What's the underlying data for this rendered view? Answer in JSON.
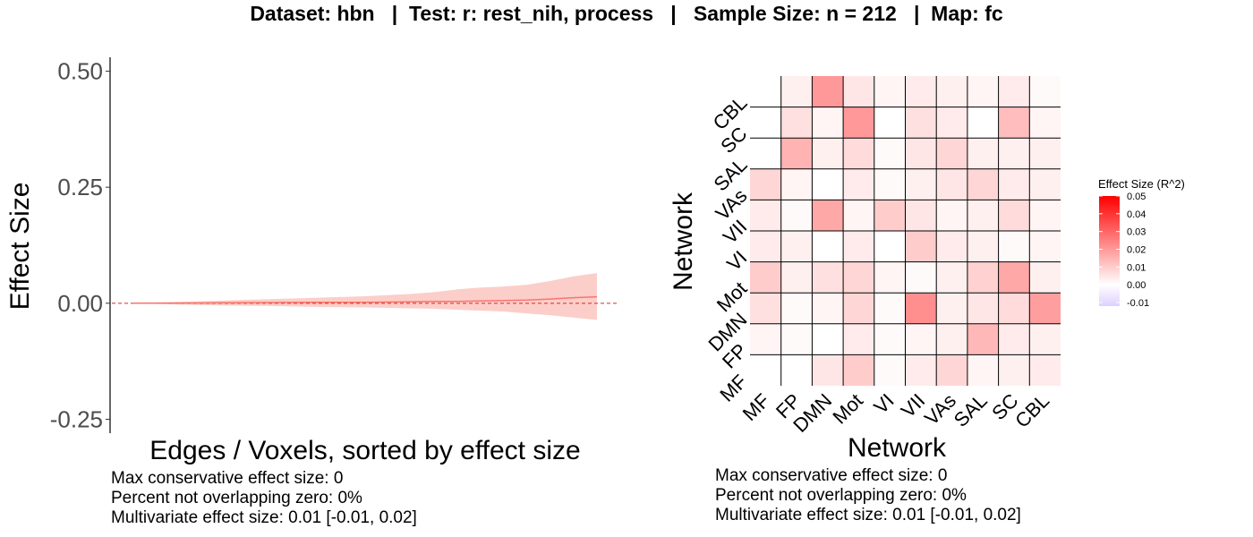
{
  "title": "Dataset: hbn   |  Test: r: rest_nih, process   |   Sample Size: n = 212   |  Map: fc",
  "chart_data": [
    {
      "type": "line",
      "xlabel": "Edges / Voxels, sorted by effect size",
      "ylabel": "Effect Size",
      "ylim": [
        -0.28,
        0.53
      ],
      "y_ticks": [
        "0.50",
        "0.25",
        "0.00",
        "-0.25"
      ],
      "y_tick_values": [
        0.5,
        0.25,
        0.0,
        -0.25
      ],
      "reference_line": 0,
      "x": [
        0,
        0.1,
        0.2,
        0.3,
        0.4,
        0.5,
        0.6,
        0.65,
        0.7,
        0.75,
        0.8,
        0.85,
        0.9,
        0.95,
        1.0
      ],
      "series": [
        {
          "values": [
            0.0,
            0.0005,
            0.001,
            0.0015,
            0.002,
            0.002,
            0.003,
            0.004,
            0.004,
            0.005,
            0.006,
            0.007,
            0.009,
            0.012,
            0.014
          ]
        }
      ],
      "band_upper": [
        0.0,
        0.003,
        0.006,
        0.009,
        0.012,
        0.015,
        0.02,
        0.024,
        0.03,
        0.034,
        0.036,
        0.04,
        0.048,
        0.058,
        0.065
      ],
      "band_lower": [
        0.0,
        -0.003,
        -0.005,
        -0.006,
        -0.008,
        -0.009,
        -0.011,
        -0.012,
        -0.014,
        -0.016,
        -0.018,
        -0.022,
        -0.026,
        -0.031,
        -0.036
      ],
      "colors": {
        "line": "#f8766d",
        "band": "#fcc5c0",
        "ref": "#d62728"
      },
      "captions": [
        "Max conservative effect size: 0",
        "Percent not overlapping zero: 0%",
        "Multivariate effect size: 0.01 [-0.01, 0.02]"
      ]
    },
    {
      "type": "heatmap",
      "xlabel": "Network",
      "ylabel": "Network",
      "x_categories": [
        "MF",
        "FP",
        "DMN",
        "Mot",
        "VI",
        "VII",
        "VAs",
        "SAL",
        "SC",
        "CBL"
      ],
      "y_categories": [
        "CBL",
        "SC",
        "SAL",
        "VAs",
        "VII",
        "VI",
        "Mot",
        "DMN",
        "FP",
        "MF"
      ],
      "values": [
        [
          null,
          0.003,
          0.02,
          0.005,
          0.002,
          0.004,
          0.003,
          0.002,
          0.004,
          0.001
        ],
        [
          null,
          0.006,
          0.002,
          0.02,
          0.0,
          0.006,
          0.004,
          0.0,
          0.013,
          0.002
        ],
        [
          null,
          0.015,
          0.003,
          0.007,
          0.001,
          0.005,
          0.008,
          0.003,
          0.003,
          0.003
        ],
        [
          0.008,
          0.002,
          0.0,
          0.004,
          0.001,
          0.003,
          0.005,
          0.008,
          0.004,
          0.003
        ],
        [
          0.004,
          0.001,
          0.017,
          0.002,
          0.01,
          0.005,
          0.002,
          0.003,
          0.007,
          0.002
        ],
        [
          0.004,
          0.003,
          0.0,
          0.004,
          0.0,
          0.01,
          0.004,
          0.003,
          0.001,
          0.002
        ],
        [
          0.01,
          0.003,
          0.006,
          0.008,
          0.002,
          0.001,
          0.003,
          0.009,
          0.017,
          0.003
        ],
        [
          0.006,
          0.001,
          0.002,
          0.008,
          0.001,
          0.022,
          0.003,
          0.005,
          0.007,
          0.019
        ],
        [
          0.002,
          0.001,
          0.0,
          0.004,
          0.001,
          0.002,
          0.003,
          0.014,
          0.004,
          0.003
        ],
        [
          null,
          null,
          0.005,
          0.01,
          0.001,
          0.004,
          0.008,
          0.002,
          0.003,
          0.004
        ]
      ],
      "legend": {
        "title": "Effect Size (R^2)",
        "ticks": [
          "0.05",
          "0.04",
          "0.03",
          "0.02",
          "0.01",
          "0.00",
          "-0.01"
        ],
        "tick_values": [
          0.05,
          0.04,
          0.03,
          0.02,
          0.01,
          0.0,
          -0.01
        ],
        "range": [
          -0.012,
          0.05
        ],
        "colors": {
          "high": "#ff0000",
          "mid": "#ffffff",
          "low": "#ddd0ff"
        }
      },
      "captions": [
        "Max conservative effect size: 0",
        "Percent not overlapping zero: 0%",
        "Multivariate effect size: 0.01 [-0.01, 0.02]"
      ]
    }
  ]
}
